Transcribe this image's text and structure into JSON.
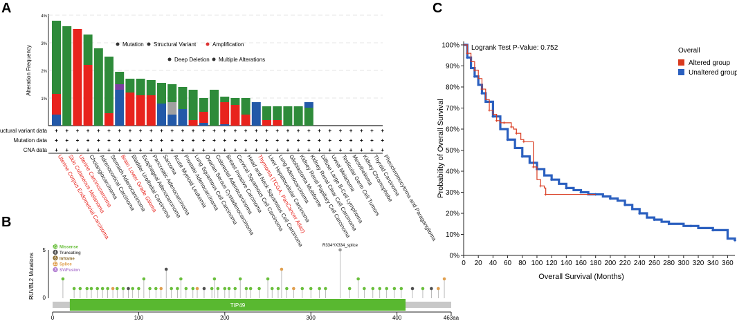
{
  "panel_labels": [
    "A",
    "B",
    "C"
  ],
  "colors": {
    "mutation": "#2e8b3a",
    "amplification": "#e8231d",
    "deep_deletion": "#2359a8",
    "multiple": "#a0a0a0",
    "structural": "#7b3fa0",
    "altered": "#d93a1f",
    "unaltered": "#2a5fbf",
    "lolli_missense": "#6abf3d",
    "domain": "#59b830",
    "domain_bg": "#c8c8c8"
  },
  "chart_data": [
    {
      "panel": "A",
      "type": "bar",
      "ylabel": "Alteration Frequency",
      "yticks": [
        "4%",
        "3%",
        "2%",
        "1%"
      ],
      "ylim": [
        0,
        4
      ],
      "legend": [
        "Mutation",
        "Structural Variant",
        "Amplification",
        "Deep Deletion",
        "Multiple Alterations"
      ],
      "row_labels": [
        "Structural variant data",
        "Mutation data",
        "CNA data"
      ],
      "row_mark": "+",
      "categories": [
        "Uterine Corpus Endometrial Carcinoma",
        "Skin Cutaneous Melanoma",
        "Uterine Carcinosarcoma",
        "Cholangiocarcinoma",
        "Adrenocortical Carcinoma",
        "Stomach Adenocarcinoma",
        "Brain Lower Grade Glioma",
        "Bladder Urothelial Carcinoma",
        "Esophageal Adenocarcinoma",
        "Pancreatic Adenocarcinoma",
        "Sarcoma",
        "Acute Myeloid Leukemia",
        "Prostate Adenocarcinoma",
        "Lung Squamous Cell Carcinoma",
        "Ovarian Serous Cystadenocarcinoma",
        "Colorectal Adenocarcinoma",
        "Breast Invasive Carcinoma",
        "Cervical Squamous Cell Carcinoma",
        "Head and Neck Squamous Cell Carcinoma",
        "Thymoma (TCGA, PanCancer Atlas)",
        "Liver Hepatocellular Carcinoma",
        "Lung Adenocarcinoma",
        "Glioblastoma Multiforme",
        "Kidney Renal Papillary Cell Carcinoma",
        "Kidney Renal Clear Cell Carcinoma",
        "Diffuse Large B-Cell Lymphoma",
        "Uveal Melanoma",
        "Testicular Germ Cell Tumors",
        "Mesothelioma",
        "Kidney Chromophobe",
        "Thyroid Carcinoma",
        "Pheochromocytoma and Paraganglioma"
      ],
      "red_labels": [
        "Uterine Corpus Endometrial Carcinoma",
        "Skin Cutaneous Melanoma",
        "Uterine Carcinosarcoma",
        "Brain Lower Grade Glioma",
        "Thymoma (TCGA, PanCancer Atlas)"
      ],
      "series": [
        {
          "name": "Deep Deletion",
          "values": [
            0.4,
            0,
            0,
            0,
            0,
            0,
            1.3,
            0,
            0,
            0,
            0.4,
            0.4,
            0.6,
            0,
            0.1,
            0,
            0.05,
            0,
            0,
            0.85,
            0,
            0,
            0,
            0,
            0,
            0,
            0,
            0,
            0,
            0,
            0,
            0
          ]
        },
        {
          "name": "Multiple Alterations",
          "values": [
            0,
            0,
            0,
            0,
            0,
            0,
            0,
            0,
            0,
            0,
            0,
            0.45,
            0,
            0,
            0,
            0,
            0,
            0,
            0,
            0,
            0,
            0,
            0,
            0,
            0,
            0,
            0,
            0,
            0,
            0,
            0,
            0
          ]
        },
        {
          "name": "Structural Variant",
          "values": [
            0,
            0,
            0,
            0,
            0,
            0,
            0.2,
            0,
            0,
            0,
            0,
            0,
            0,
            0,
            0,
            0,
            0,
            0,
            0,
            0,
            0,
            0,
            0,
            0,
            0,
            0,
            0,
            0,
            0,
            0,
            0,
            0
          ]
        },
        {
          "name": "Amplification",
          "values": [
            0.75,
            0,
            3.5,
            2.2,
            0,
            0.45,
            0,
            1.2,
            1.1,
            1.1,
            0,
            0,
            0,
            0.2,
            0.4,
            0,
            0.8,
            0.75,
            0.4,
            0,
            0.2,
            0.2,
            0,
            0,
            0,
            0,
            0,
            0,
            0,
            0,
            0,
            0
          ]
        },
        {
          "name": "Deep Deletion (upper)",
          "values": [
            0,
            0,
            0,
            0,
            0,
            0,
            0,
            0,
            0,
            0,
            0.4,
            0,
            0,
            0,
            0,
            0,
            0,
            0,
            0,
            0,
            0,
            0,
            0,
            0,
            0,
            0,
            0,
            0,
            0,
            0,
            0,
            0
          ]
        },
        {
          "name": "Mutation",
          "values": [
            2.65,
            3.6,
            0,
            1.1,
            2.8,
            2.05,
            0.45,
            0.5,
            0.6,
            0.55,
            0.75,
            0.65,
            0.8,
            1.1,
            0.5,
            1.3,
            0.2,
            0.25,
            0.6,
            0,
            0.5,
            0.5,
            0.7,
            0.7,
            0.65,
            0,
            0,
            0,
            0,
            0,
            0,
            0
          ]
        },
        {
          "name": "Deep Deletion (blue cap)",
          "values": [
            0,
            0,
            0,
            0,
            0,
            0,
            0,
            0,
            0,
            0,
            0,
            0,
            0,
            0,
            0,
            0,
            0,
            0,
            0,
            0,
            0,
            0,
            0,
            0,
            0.2,
            0,
            0,
            0,
            0,
            0,
            0,
            0
          ]
        }
      ]
    },
    {
      "panel": "B",
      "type": "scatter",
      "ylabel": "RUVBL2 Mutations",
      "yticks": [
        "5",
        "0"
      ],
      "ylim": [
        0,
        5
      ],
      "xlim": [
        0,
        463
      ],
      "xticks": [
        "0",
        "100",
        "200",
        "300",
        "400",
        "463aa"
      ],
      "domain_name": "TIP49",
      "domain_range": [
        20,
        410
      ],
      "annotation": "R334*/X334_splice",
      "legend": [
        {
          "count": "73",
          "label": "Missense",
          "color": "#6abf3d"
        },
        {
          "count": "4",
          "label": "Truncating",
          "color": "#505050"
        },
        {
          "count": "6",
          "label": "Inframe",
          "color": "#8a6a2a"
        },
        {
          "count": "12",
          "label": "Splice",
          "color": "#e0a050"
        },
        {
          "count": "3",
          "label": "SV/Fusion",
          "color": "#b07ad0"
        }
      ],
      "points": [
        [
          12,
          2
        ],
        [
          25,
          1
        ],
        [
          32,
          1
        ],
        [
          40,
          1
        ],
        [
          45,
          1
        ],
        [
          52,
          1
        ],
        [
          58,
          1
        ],
        [
          64,
          1
        ],
        [
          70,
          1
        ],
        [
          75,
          1
        ],
        [
          82,
          1
        ],
        [
          88,
          1
        ],
        [
          93,
          1
        ],
        [
          100,
          1
        ],
        [
          106,
          2
        ],
        [
          113,
          1
        ],
        [
          120,
          1
        ],
        [
          126,
          1
        ],
        [
          132,
          3
        ],
        [
          138,
          1
        ],
        [
          145,
          1
        ],
        [
          149,
          2
        ],
        [
          155,
          1
        ],
        [
          163,
          1
        ],
        [
          168,
          1
        ],
        [
          176,
          1
        ],
        [
          185,
          1
        ],
        [
          188,
          2
        ],
        [
          192,
          1
        ],
        [
          200,
          1
        ],
        [
          205,
          1
        ],
        [
          212,
          1
        ],
        [
          218,
          2
        ],
        [
          225,
          1
        ],
        [
          230,
          1
        ],
        [
          240,
          1
        ],
        [
          250,
          2
        ],
        [
          255,
          1
        ],
        [
          262,
          1
        ],
        [
          266,
          3
        ],
        [
          272,
          1
        ],
        [
          280,
          1
        ],
        [
          290,
          1
        ],
        [
          300,
          1
        ],
        [
          310,
          1
        ],
        [
          317,
          1
        ],
        [
          334,
          5
        ],
        [
          345,
          1
        ],
        [
          355,
          2
        ],
        [
          362,
          1
        ],
        [
          372,
          1
        ],
        [
          380,
          1
        ],
        [
          388,
          1
        ],
        [
          397,
          1
        ],
        [
          405,
          1
        ],
        [
          418,
          1
        ],
        [
          430,
          1
        ],
        [
          440,
          1
        ],
        [
          448,
          1
        ],
        [
          455,
          2
        ]
      ]
    },
    {
      "panel": "C",
      "type": "line",
      "title": "Logrank Test P-Value: 0.752",
      "xlabel": "Overall Survival (Months)",
      "ylabel": "Probability of Overall Survival",
      "xlim": [
        0,
        370
      ],
      "ylim": [
        0,
        100
      ],
      "xticks": [
        "0",
        "20",
        "40",
        "60",
        "80",
        "100",
        "120",
        "140",
        "160",
        "180",
        "200",
        "220",
        "240",
        "260",
        "280",
        "300",
        "320",
        "340",
        "360"
      ],
      "yticks": [
        "0%",
        "10%",
        "20%",
        "30%",
        "40%",
        "50%",
        "60%",
        "70%",
        "80%",
        "90%",
        "100%"
      ],
      "legend_title": "Overall",
      "series": [
        {
          "name": "Altered group",
          "x": [
            0,
            5,
            10,
            15,
            20,
            25,
            30,
            35,
            40,
            45,
            50,
            55,
            60,
            65,
            68,
            72,
            78,
            82,
            90,
            95,
            100,
            105,
            110,
            112,
            180
          ],
          "y": [
            100,
            96,
            92,
            88,
            84,
            79,
            74,
            69,
            67,
            64,
            63,
            63,
            63,
            61,
            60,
            58,
            55,
            54,
            54,
            42,
            36,
            33,
            32,
            29,
            29
          ]
        },
        {
          "name": "Unaltered group",
          "x": [
            0,
            5,
            10,
            15,
            20,
            25,
            30,
            40,
            50,
            60,
            70,
            80,
            90,
            100,
            110,
            120,
            130,
            140,
            150,
            160,
            170,
            180,
            190,
            200,
            210,
            220,
            230,
            240,
            250,
            260,
            270,
            280,
            300,
            310,
            320,
            340,
            360,
            370
          ],
          "y": [
            100,
            94,
            89,
            85,
            81,
            77,
            73,
            66,
            60,
            55,
            51,
            47,
            44,
            41,
            38,
            36,
            34,
            32,
            31,
            30,
            29,
            29,
            28,
            27,
            26,
            24,
            22,
            20,
            18,
            17,
            16,
            15,
            14,
            14,
            13,
            12,
            8,
            7
          ]
        }
      ]
    }
  ]
}
